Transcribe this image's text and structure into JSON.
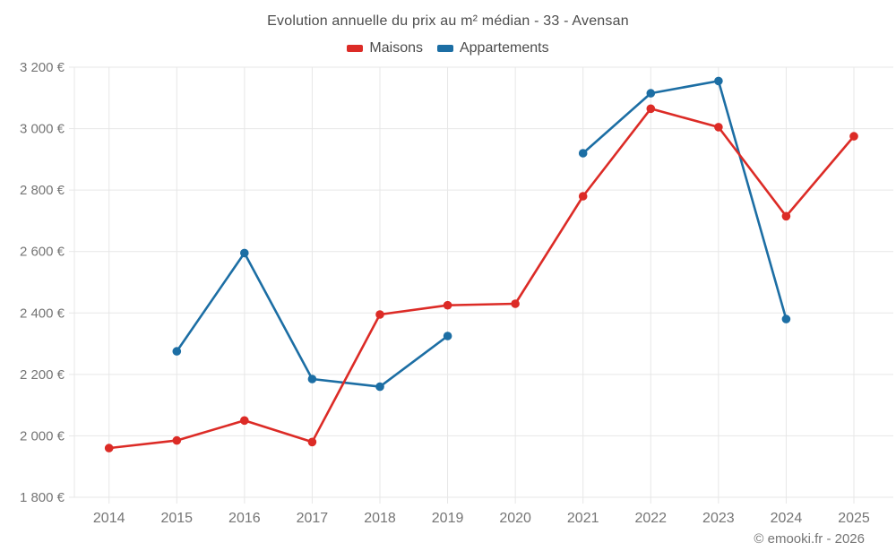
{
  "chart": {
    "title": "Evolution annuelle du prix au m² médian - 33 - Avensan",
    "footer": "© emooki.fr - 2026"
  },
  "chart_data": {
    "type": "line",
    "title": "Evolution annuelle du prix au m² médian - 33 - Avensan",
    "categories": [
      "2014",
      "2015",
      "2016",
      "2017",
      "2018",
      "2019",
      "2020",
      "2021",
      "2022",
      "2023",
      "2024",
      "2025"
    ],
    "series": [
      {
        "name": "Appartements",
        "color": "#1c6ea4",
        "values": [
          null,
          2275,
          2595,
          2185,
          2160,
          2325,
          null,
          2920,
          3115,
          3155,
          2380,
          null
        ]
      },
      {
        "name": "Maisons",
        "color": "#dc2b26",
        "values": [
          1960,
          1985,
          2050,
          1980,
          2395,
          2425,
          2430,
          2780,
          3065,
          3005,
          2715,
          2975
        ]
      }
    ],
    "legend_order": [
      "Maisons",
      "Appartements"
    ],
    "ylabel": "",
    "xlabel": "",
    "ylim": [
      1800,
      3200
    ],
    "ytick_values": [
      1800,
      2000,
      2200,
      2400,
      2600,
      2800,
      3000,
      3200
    ],
    "ytick_labels": [
      "1 800 €",
      "2 000 €",
      "2 200 €",
      "2 400 €",
      "2 600 €",
      "2 800 €",
      "3 000 €",
      "3 200 €"
    ],
    "grid": true,
    "legend_position": "top",
    "colors": {
      "grid": "#e7e7e7",
      "axis_text": "#757575",
      "title_text": "#4c4c4c"
    }
  }
}
